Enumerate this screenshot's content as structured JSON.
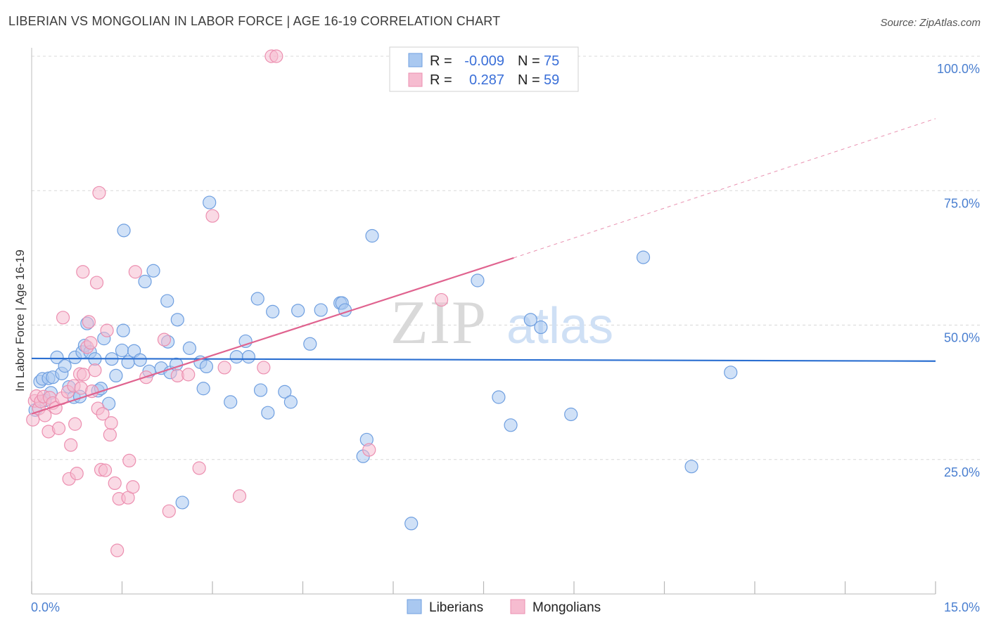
{
  "header": {
    "title": "LIBERIAN VS MONGOLIAN IN LABOR FORCE | AGE 16-19 CORRELATION CHART",
    "source": "Source: ZipAtlas.com"
  },
  "watermark": {
    "zip": "ZIP",
    "atlas": "atlas"
  },
  "legend_box": {
    "row1": {
      "r_label": "R =",
      "r_value": "-0.009",
      "n_label": "N =",
      "n_value": "75"
    },
    "row2": {
      "r_label": "R =",
      "r_value": "0.287",
      "n_label": "N =",
      "n_value": "59"
    }
  },
  "bottom_legend": {
    "series1": "Liberians",
    "series2": "Mongolians"
  },
  "colors": {
    "blue_fill": "#a9c8f0",
    "blue_stroke": "#6f9fe0",
    "blue_line": "#2b6fd1",
    "pink_fill": "#f6bcd0",
    "pink_stroke": "#ec8fb0",
    "pink_line": "#e0638f",
    "grid": "#d8d8d8",
    "tick_text": "#4a7fd0"
  },
  "chart_data": {
    "type": "scatter",
    "title": "LIBERIAN VS MONGOLIAN IN LABOR FORCE | AGE 16-19 CORRELATION CHART",
    "xlabel": "",
    "ylabel": "In Labor Force | Age 16-19",
    "xlim": [
      0,
      15
    ],
    "ylim": [
      0,
      100
    ],
    "x_tick_labels": [
      "0.0%",
      "15.0%"
    ],
    "y_ticks": [
      25,
      50,
      75,
      100
    ],
    "y_tick_labels": [
      "25.0%",
      "50.0%",
      "75.0%",
      "100.0%"
    ],
    "grid": true,
    "legend_position": "top-center",
    "series": [
      {
        "name": "Liberians",
        "r": -0.009,
        "n": 75,
        "trend": {
          "x": [
            0,
            15
          ],
          "y": [
            43.8,
            43.3
          ],
          "style": "solid"
        },
        "points": [
          [
            0.06,
            34.2
          ],
          [
            0.14,
            39.5
          ],
          [
            0.18,
            40.0
          ],
          [
            0.22,
            36.0
          ],
          [
            0.28,
            40.1
          ],
          [
            0.32,
            37.4
          ],
          [
            0.35,
            40.3
          ],
          [
            0.42,
            44.0
          ],
          [
            0.5,
            41.0
          ],
          [
            0.55,
            42.4
          ],
          [
            0.62,
            38.5
          ],
          [
            0.7,
            36.6
          ],
          [
            0.72,
            44.0
          ],
          [
            0.8,
            36.7
          ],
          [
            0.84,
            45.0
          ],
          [
            0.88,
            46.2
          ],
          [
            0.92,
            50.3
          ],
          [
            0.97,
            45.0
          ],
          [
            1.05,
            43.7
          ],
          [
            1.1,
            37.8
          ],
          [
            1.15,
            38.2
          ],
          [
            1.2,
            47.5
          ],
          [
            1.28,
            35.4
          ],
          [
            1.33,
            43.7
          ],
          [
            1.4,
            40.6
          ],
          [
            1.5,
            45.3
          ],
          [
            1.52,
            49.0
          ],
          [
            1.53,
            67.6
          ],
          [
            1.6,
            43.1
          ],
          [
            1.7,
            45.2
          ],
          [
            1.8,
            43.5
          ],
          [
            1.88,
            58.1
          ],
          [
            1.95,
            41.4
          ],
          [
            2.02,
            60.1
          ],
          [
            2.15,
            42.0
          ],
          [
            2.25,
            54.5
          ],
          [
            2.26,
            46.9
          ],
          [
            2.3,
            41.2
          ],
          [
            2.4,
            42.7
          ],
          [
            2.42,
            51.0
          ],
          [
            2.5,
            17.0
          ],
          [
            2.62,
            45.7
          ],
          [
            2.8,
            43.1
          ],
          [
            2.85,
            38.2
          ],
          [
            2.9,
            42.3
          ],
          [
            2.95,
            72.8
          ],
          [
            3.3,
            35.7
          ],
          [
            3.4,
            44.1
          ],
          [
            3.55,
            47.0
          ],
          [
            3.6,
            44.1
          ],
          [
            3.75,
            54.9
          ],
          [
            3.8,
            37.9
          ],
          [
            3.92,
            33.7
          ],
          [
            4.0,
            52.5
          ],
          [
            4.2,
            37.6
          ],
          [
            4.3,
            35.7
          ],
          [
            4.42,
            52.7
          ],
          [
            4.62,
            46.5
          ],
          [
            4.8,
            52.8
          ],
          [
            5.12,
            54.1
          ],
          [
            5.15,
            54.1
          ],
          [
            5.2,
            52.8
          ],
          [
            5.5,
            25.6
          ],
          [
            5.56,
            28.7
          ],
          [
            5.65,
            66.6
          ],
          [
            6.3,
            13.1
          ],
          [
            7.4,
            58.3
          ],
          [
            7.75,
            36.6
          ],
          [
            7.95,
            31.4
          ],
          [
            8.28,
            51.0
          ],
          [
            8.45,
            49.6
          ],
          [
            8.95,
            33.4
          ],
          [
            10.15,
            62.6
          ],
          [
            10.95,
            23.7
          ],
          [
            11.6,
            41.2
          ]
        ]
      },
      {
        "name": "Mongolians",
        "r": 0.287,
        "n": 59,
        "trend": {
          "x": [
            0,
            8.0
          ],
          "y": [
            33.5,
            62.5
          ],
          "style": "solid",
          "extended_to": [
            15,
            88.4
          ],
          "extended_style": "dashed"
        },
        "points": [
          [
            0.02,
            32.4
          ],
          [
            0.05,
            35.9
          ],
          [
            0.08,
            36.8
          ],
          [
            0.12,
            34.5
          ],
          [
            0.15,
            35.8
          ],
          [
            0.2,
            36.7
          ],
          [
            0.22,
            33.2
          ],
          [
            0.28,
            30.2
          ],
          [
            0.3,
            36.5
          ],
          [
            0.35,
            35.5
          ],
          [
            0.4,
            34.6
          ],
          [
            0.45,
            30.8
          ],
          [
            0.5,
            36.4
          ],
          [
            0.52,
            51.4
          ],
          [
            0.6,
            37.6
          ],
          [
            0.62,
            21.4
          ],
          [
            0.65,
            27.7
          ],
          [
            0.7,
            38.7
          ],
          [
            0.75,
            22.4
          ],
          [
            0.72,
            31.6
          ],
          [
            0.8,
            40.9
          ],
          [
            0.86,
            40.8
          ],
          [
            0.82,
            38.3
          ],
          [
            0.85,
            59.9
          ],
          [
            0.92,
            45.9
          ],
          [
            0.95,
            50.6
          ],
          [
            0.98,
            46.7
          ],
          [
            1.0,
            37.7
          ],
          [
            1.05,
            41.6
          ],
          [
            1.08,
            57.9
          ],
          [
            1.1,
            34.5
          ],
          [
            1.12,
            74.6
          ],
          [
            1.15,
            23.1
          ],
          [
            1.18,
            33.5
          ],
          [
            1.22,
            23.0
          ],
          [
            1.25,
            49.0
          ],
          [
            1.3,
            29.6
          ],
          [
            1.32,
            31.8
          ],
          [
            1.38,
            20.6
          ],
          [
            1.42,
            8.1
          ],
          [
            1.45,
            17.7
          ],
          [
            1.6,
            17.9
          ],
          [
            1.62,
            24.8
          ],
          [
            1.68,
            19.9
          ],
          [
            1.72,
            59.9
          ],
          [
            1.9,
            40.3
          ],
          [
            2.2,
            47.3
          ],
          [
            2.28,
            15.4
          ],
          [
            2.42,
            40.6
          ],
          [
            2.6,
            40.8
          ],
          [
            2.78,
            23.4
          ],
          [
            3.0,
            70.3
          ],
          [
            3.2,
            42.1
          ],
          [
            3.45,
            18.2
          ],
          [
            3.85,
            42.1
          ],
          [
            3.98,
            100.0
          ],
          [
            4.06,
            100.0
          ],
          [
            5.6,
            26.8
          ],
          [
            6.8,
            54.7
          ]
        ]
      }
    ]
  }
}
